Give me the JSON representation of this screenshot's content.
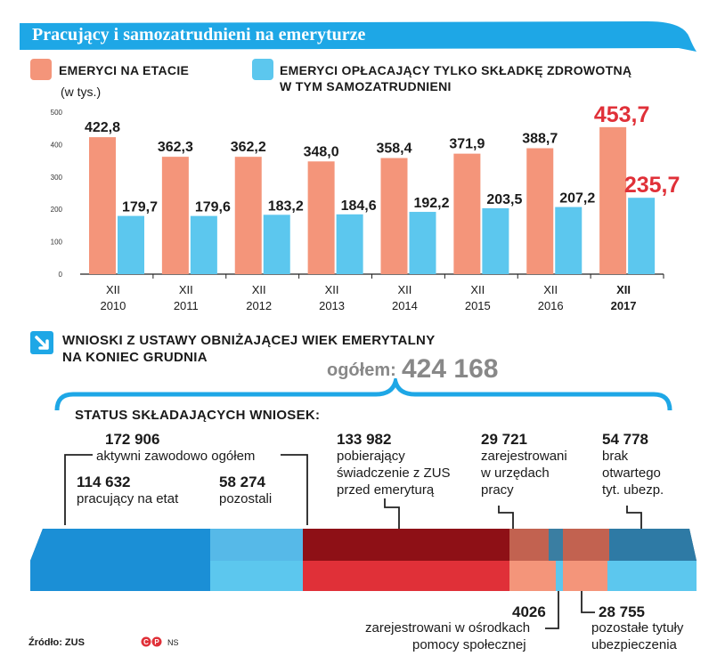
{
  "title": "Pracujący i  samozatrudnieni na emeryturze",
  "colors": {
    "salmon": "#f4957a",
    "blue": "#5cc7ee",
    "red": "#e03038",
    "darkblue": "#1f8fd0",
    "banner": "#1ea7e6"
  },
  "legend": [
    {
      "label": "Emeryci na etacie",
      "color": "#f4957a"
    },
    {
      "label_line1": "Emeryci opłacający tylko składkę zdrowotną",
      "label_line2": "w tym samozatrudnieni",
      "color": "#5cc7ee"
    }
  ],
  "chart_data": {
    "type": "bar",
    "unit_label": "(w tys.)",
    "categories": [
      "XII 2010",
      "XII 2011",
      "XII 2012",
      "XII 2013",
      "XII 2014",
      "XII 2015",
      "XII 2016",
      "XII 2017"
    ],
    "category_top": [
      "XII",
      "XII",
      "XII",
      "XII",
      "XII",
      "XII",
      "XII",
      "XII"
    ],
    "category_bottom": [
      "2010",
      "2011",
      "2012",
      "2013",
      "2014",
      "2015",
      "2016",
      "2017"
    ],
    "series": [
      {
        "values": [
          422.8,
          362.3,
          362.2,
          348.0,
          358.4,
          371.9,
          388.7,
          453.7
        ],
        "labels": [
          "422,8",
          "362,3",
          "362,2",
          "348,0",
          "358,4",
          "371,9",
          "388,7",
          "453,7"
        ],
        "color": "#f4957a"
      },
      {
        "values": [
          179.7,
          179.6,
          183.2,
          184.6,
          192.2,
          203.5,
          207.2,
          235.7
        ],
        "labels": [
          "179,7",
          "179,6",
          "183,2",
          "184,6",
          "192,2",
          "203,5",
          "207,2",
          "235,7"
        ],
        "color": "#5cc7ee"
      }
    ],
    "ylim": [
      0,
      500
    ],
    "yticks": [
      "0",
      "100",
      "200",
      "300",
      "400",
      "500"
    ],
    "highlight_color": "#e03038"
  },
  "section2": {
    "head_line1": "Wnioski z ustawy obniżającej wiek emerytalny",
    "head_line2": "na koniec grudnia",
    "total_label": "ogółem:",
    "total_value": "424 168",
    "status_label": "Status składających wniosek:"
  },
  "items": {
    "active_num": "172 906",
    "active_desc": "aktywni zawodowo ogółem",
    "etat_num": "114 632",
    "etat_desc": "pracujący na etat",
    "others_num": "58 274",
    "others_desc": "pozostali",
    "zus_num": "133 982",
    "zus_desc1": "pobierający",
    "zus_desc2": "świadczenie z ZUS",
    "zus_desc3": "przed emeryturą",
    "labor_num": "29 721",
    "labor_desc1": "zarejestrowani",
    "labor_desc2": "w urzędach",
    "labor_desc3": "pracy",
    "noins_num": "54 778",
    "noins_desc1": "brak",
    "noins_desc2": "otwartego",
    "noins_desc3": "tyt. ubezp.",
    "social_num": "4026",
    "social_desc1": "zarejestrowani w ośrodkach",
    "social_desc2": "pomocy społecznej",
    "otherins_num": "28 755",
    "otherins_desc1": "pozostałe tytuły",
    "otherins_desc2": "ubezpieczenia"
  },
  "source": "Źródło: ZUS",
  "credit": "NS"
}
